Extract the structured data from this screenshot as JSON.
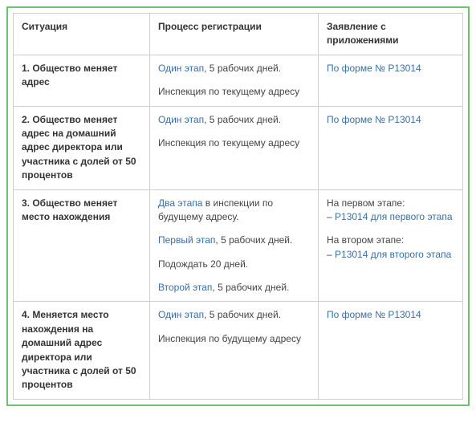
{
  "colors": {
    "frame_border": "#6fbf73",
    "cell_border": "#cfcfcf",
    "text": "#444444",
    "link": "#3a6ea5",
    "header_text": "#333333"
  },
  "col_widths": [
    "170px",
    "210px",
    "auto"
  ],
  "headers": {
    "c1": "Ситуация",
    "c2": "Процесс регистрации",
    "c3": "Заявление с приложениями"
  },
  "rows": {
    "r1": {
      "situation": "1. Общество меняет адрес",
      "process": {
        "p1_link": "Один этап",
        "p1_rest": ", 5 рабочих дней.",
        "p2": "Инспекция по текущему адресу"
      },
      "app": {
        "link": "По форме № Р13014"
      }
    },
    "r2": {
      "situation": "2. Общество меняет адрес на домашний адрес директора или участника с долей от 50 процентов",
      "process": {
        "p1_link": "Один этап",
        "p1_rest": ", 5 рабочих дней.",
        "p2": "Инспекция по текущему адресу"
      },
      "app": {
        "link": "По форме № Р13014"
      }
    },
    "r3": {
      "situation": "3. Общество меняет место нахождения",
      "process": {
        "p1_link": "Два этапа",
        "p1_rest": " в инспекции по будущему адресу.",
        "p2_link": "Первый этап",
        "p2_rest": ", 5 рабочих дней.",
        "p3": "Подождать 20 дней.",
        "p4_link": "Второй этап",
        "p4_rest": ", 5 рабочих дней."
      },
      "app": {
        "l1": "На первом этапе:",
        "dash1": "– ",
        "link1": "Р13014 для первого этапа",
        "l2": "На втором этапе:",
        "dash2": "– ",
        "link2": "Р13014 для второго этапа"
      }
    },
    "r4": {
      "situation": "4. Меняется место нахождения на домашний адрес директора или участника с долей от 50 процентов",
      "process": {
        "p1_link": "Один этап",
        "p1_rest": ", 5 рабочих дней.",
        "p2": "Инспекция по будущему адресу"
      },
      "app": {
        "link": "По форме № Р13014"
      }
    }
  }
}
